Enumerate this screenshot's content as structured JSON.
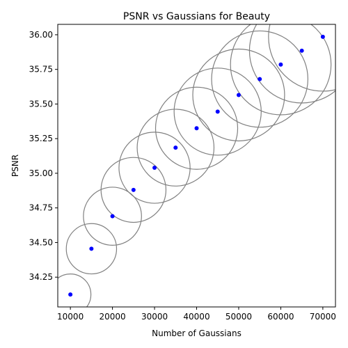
{
  "chart_data": {
    "type": "scatter",
    "title": "PSNR vs Gaussians for Beauty",
    "xlabel": "Number of Gaussians",
    "ylabel": "PSNR",
    "x": [
      10000,
      15000,
      20000,
      25000,
      30000,
      35000,
      40000,
      45000,
      50000,
      55000,
      60000,
      65000,
      70000
    ],
    "y": [
      34.125,
      34.455,
      34.69,
      34.88,
      35.04,
      35.185,
      35.325,
      35.445,
      35.565,
      35.68,
      35.785,
      35.885,
      35.985
    ],
    "xlim": [
      7000,
      73000
    ],
    "ylim": [
      34.035,
      36.075
    ],
    "xticks": [
      10000,
      20000,
      30000,
      40000,
      50000,
      60000,
      70000
    ],
    "xtick_labels": [
      "10000",
      "20000",
      "30000",
      "40000",
      "50000",
      "60000",
      "70000"
    ],
    "yticks": [
      34.25,
      34.5,
      34.75,
      35.0,
      35.25,
      35.5,
      35.75,
      36.0
    ],
    "ytick_labels": [
      "34.25",
      "34.50",
      "34.75",
      "35.00",
      "35.25",
      "35.50",
      "35.75",
      "36.00"
    ],
    "grid": false,
    "legend": false,
    "marker_color": "#0000ff",
    "bubble_edge_color": "#808080",
    "bubble_scale": "circle area proportional to number of Gaussians"
  }
}
